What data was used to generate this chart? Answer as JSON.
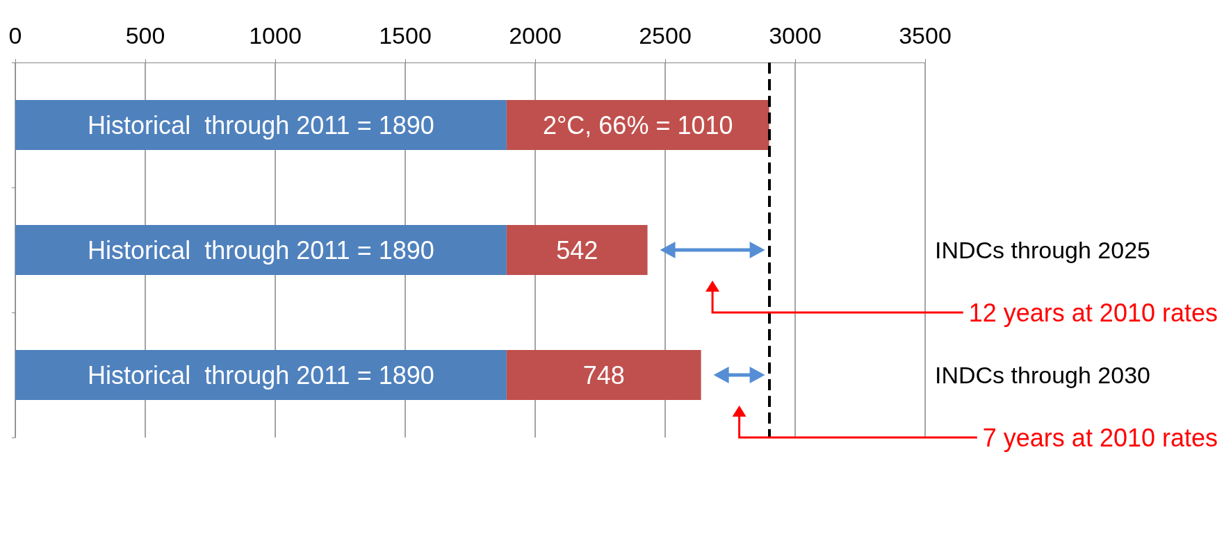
{
  "chart_data": {
    "type": "bar",
    "orientation": "horizontal",
    "stacked": true,
    "categories": [
      null,
      "INDCs through 2025",
      "INDCs through 2030"
    ],
    "series": [
      {
        "color": "#4f81bd",
        "values": [
          1890,
          1890,
          1890
        ],
        "value_labels": [
          "Historical  through 2011 = 1890",
          "Historical  through 2011 = 1890",
          "Historical  through 2011 = 1890"
        ]
      },
      {
        "color": "#c0504d",
        "values": [
          1010,
          542,
          748
        ],
        "value_labels": [
          "2°C, 66% = 1010",
          "542",
          "748"
        ]
      }
    ],
    "xlim": [
      0,
      3500
    ],
    "xticks": [
      0,
      500,
      1000,
      1500,
      2000,
      2500,
      3000,
      3500
    ],
    "grid": "x",
    "ref_lines": [
      {
        "axis": "x",
        "value": 2900,
        "color": "#000000",
        "line_style": "dashed"
      }
    ],
    "annotations": [
      "12 years at 2010 rates",
      "7 years at 2010 rates"
    ]
  }
}
